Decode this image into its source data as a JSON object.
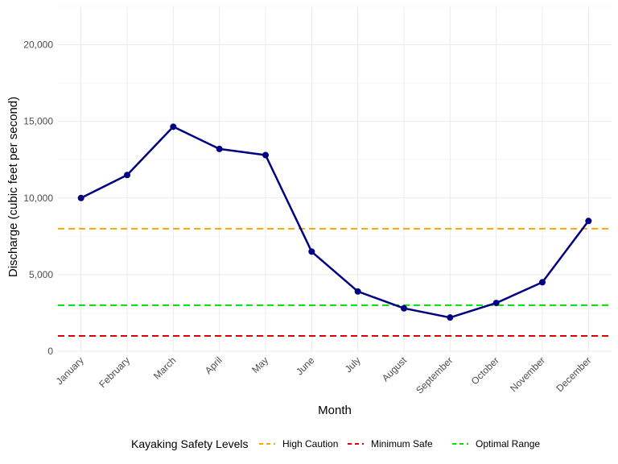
{
  "chart_data": {
    "type": "line",
    "title": "",
    "xlabel": "Month",
    "ylabel": "Discharge (cubic feet per second)",
    "categories": [
      "January",
      "February",
      "March",
      "April",
      "May",
      "June",
      "July",
      "August",
      "September",
      "October",
      "November",
      "December"
    ],
    "series": [
      {
        "values": [
          10000,
          11500,
          14650,
          13200,
          12800,
          6500,
          3900,
          2800,
          2200,
          3150,
          4500,
          8500
        ],
        "color": "#000080",
        "marker": "circle"
      }
    ],
    "reference_lines": [
      {
        "name": "High Caution",
        "value": 8000,
        "color": "#FFA500",
        "style": "dashed"
      },
      {
        "name": "Minimum Safe",
        "value": 1000,
        "color": "#DD0000",
        "style": "dashed"
      },
      {
        "name": "Optimal Range",
        "value": 3000,
        "color": "#00DD00",
        "style": "dashed"
      }
    ],
    "ylim": [
      0,
      22500
    ],
    "yticks": [
      0,
      5000,
      10000,
      15000,
      20000
    ],
    "ytick_labels": [
      "0",
      "5,000",
      "10,000",
      "15,000",
      "20,000"
    ],
    "grid": true,
    "legend": {
      "title": "Kayaking Safety Levels",
      "position": "bottom",
      "entries": [
        "High Caution",
        "Minimum Safe",
        "Optimal Range"
      ]
    }
  }
}
